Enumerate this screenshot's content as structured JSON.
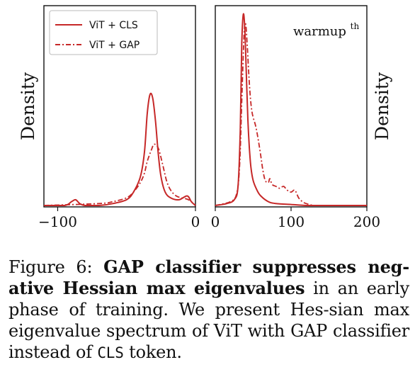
{
  "chart_data": [
    {
      "type": "line",
      "panel": "left",
      "xlim": [
        -110,
        0
      ],
      "xticks": [
        -100,
        0
      ],
      "xtick_labels": [
        "−100",
        "0"
      ],
      "ylabel": "Density",
      "legend": {
        "placement": "top-left",
        "entries": [
          "ViT + CLS",
          "ViT + GAP"
        ]
      },
      "series": [
        {
          "name": "ViT + CLS",
          "style": "solid",
          "color": "#c62828",
          "x": [
            -110,
            -95,
            -90,
            -87,
            -84,
            -80,
            -70,
            -60,
            -50,
            -45,
            -40,
            -37,
            -35,
            -33,
            -31,
            -29,
            -27,
            -25,
            -22,
            -18,
            -12,
            -6,
            -3,
            0
          ],
          "y": [
            0,
            0,
            0.02,
            0.03,
            0.01,
            0,
            0,
            0.01,
            0.03,
            0.07,
            0.15,
            0.28,
            0.48,
            0.58,
            0.56,
            0.44,
            0.27,
            0.15,
            0.07,
            0.04,
            0.03,
            0.05,
            0.02,
            0
          ]
        },
        {
          "name": "ViT + GAP",
          "style": "dashdot",
          "color": "#c62828",
          "x": [
            -110,
            -70,
            -60,
            -50,
            -45,
            -40,
            -37,
            -35,
            -32,
            -30,
            -27,
            -24,
            -21,
            -18,
            -14,
            -10,
            -5,
            0
          ],
          "y": [
            0,
            0.01,
            0.02,
            0.04,
            0.07,
            0.12,
            0.17,
            0.23,
            0.29,
            0.32,
            0.3,
            0.22,
            0.13,
            0.08,
            0.05,
            0.04,
            0.03,
            0
          ]
        }
      ]
    },
    {
      "type": "line",
      "panel": "right",
      "xlim": [
        0,
        200
      ],
      "xticks": [
        0,
        100,
        200
      ],
      "xtick_labels": [
        "0",
        "100",
        "200"
      ],
      "ylabel": "Density",
      "annotation": {
        "text": "warmup",
        "sup": "th"
      },
      "series": [
        {
          "name": "ViT + CLS",
          "style": "solid",
          "color": "#c62828",
          "x": [
            0,
            15,
            25,
            30,
            33,
            35,
            37,
            39,
            41,
            43,
            45,
            47,
            50,
            55,
            60,
            70,
            80,
            100,
            120,
            140,
            200
          ],
          "y": [
            0,
            0.01,
            0.03,
            0.1,
            0.4,
            0.85,
            1.0,
            0.92,
            0.68,
            0.45,
            0.3,
            0.2,
            0.13,
            0.08,
            0.05,
            0.02,
            0.01,
            0.005,
            0,
            0,
            0
          ]
        },
        {
          "name": "ViT + GAP",
          "style": "dashdot",
          "color": "#c62828",
          "x": [
            0,
            20,
            28,
            32,
            35,
            38,
            40,
            42,
            44,
            46,
            48,
            50,
            53,
            56,
            60,
            63,
            66,
            70,
            72,
            75,
            80,
            85,
            90,
            95,
            100,
            105,
            110,
            115,
            120,
            130,
            140,
            200
          ],
          "y": [
            0,
            0.02,
            0.06,
            0.2,
            0.55,
            0.9,
            0.95,
            0.85,
            0.7,
            0.58,
            0.5,
            0.46,
            0.42,
            0.36,
            0.26,
            0.18,
            0.13,
            0.12,
            0.14,
            0.11,
            0.1,
            0.09,
            0.1,
            0.08,
            0.07,
            0.08,
            0.04,
            0.02,
            0.01,
            0,
            0,
            0
          ]
        }
      ]
    }
  ],
  "caption": {
    "label": "Figure 6: ",
    "bold": "GAP classifier suppresses neg-ative Hessian max eigenvalues",
    "text1": " in an early phase of training. We present Hes-sian max eigenvalue spectrum of ViT with GAP classifier instead of ",
    "code": "CLS",
    "text2": " token."
  }
}
